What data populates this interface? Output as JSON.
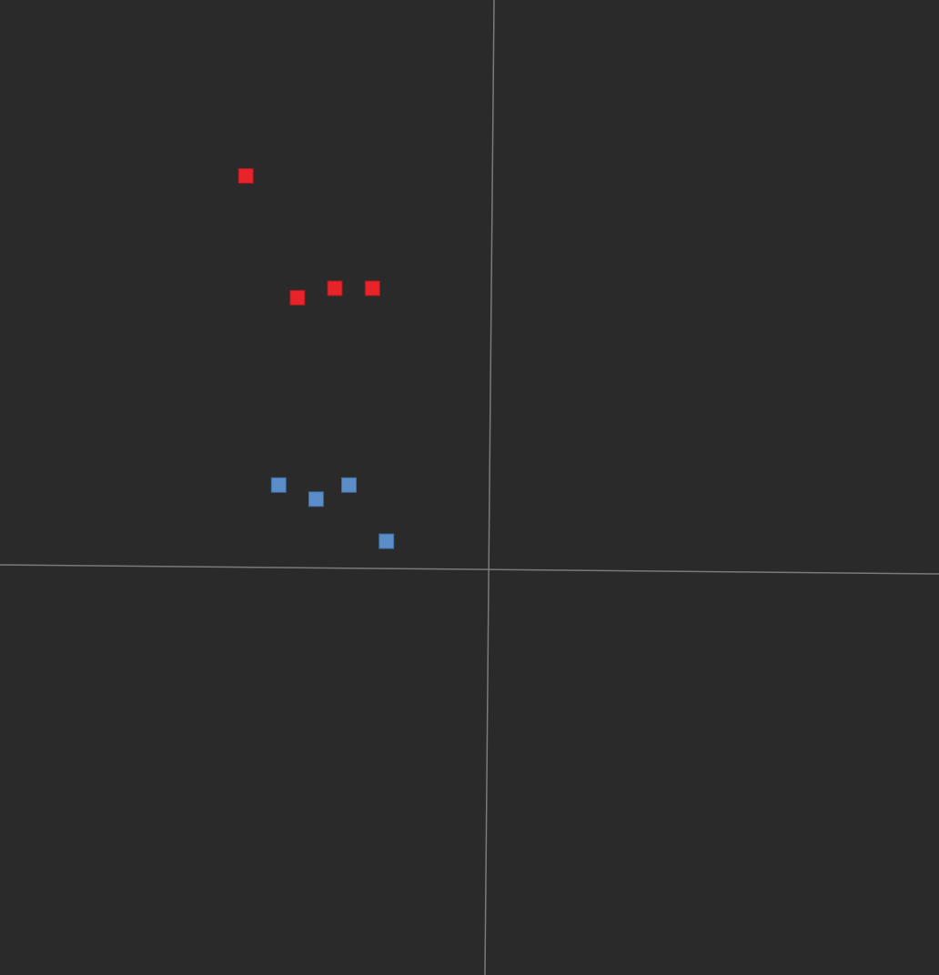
{
  "viewport": {
    "background": "#2a2a2a",
    "axis_color": "#7a7a7a"
  },
  "point_groups": [
    {
      "name": "red",
      "fill": "#e8242a",
      "stroke": "#a81a1e",
      "points": [
        {
          "u": -0.52,
          "v": 0.84
        },
        {
          "u": -0.41,
          "v": 0.58
        },
        {
          "u": -0.33,
          "v": 0.6
        },
        {
          "u": -0.25,
          "v": 0.6
        }
      ]
    },
    {
      "name": "blue",
      "fill": "#5b8ec9",
      "stroke": "#3e6a9c",
      "points": [
        {
          "u": -0.45,
          "v": 0.18
        },
        {
          "u": -0.37,
          "v": 0.15
        },
        {
          "u": -0.3,
          "v": 0.18
        },
        {
          "u": -0.22,
          "v": 0.06
        }
      ]
    }
  ]
}
